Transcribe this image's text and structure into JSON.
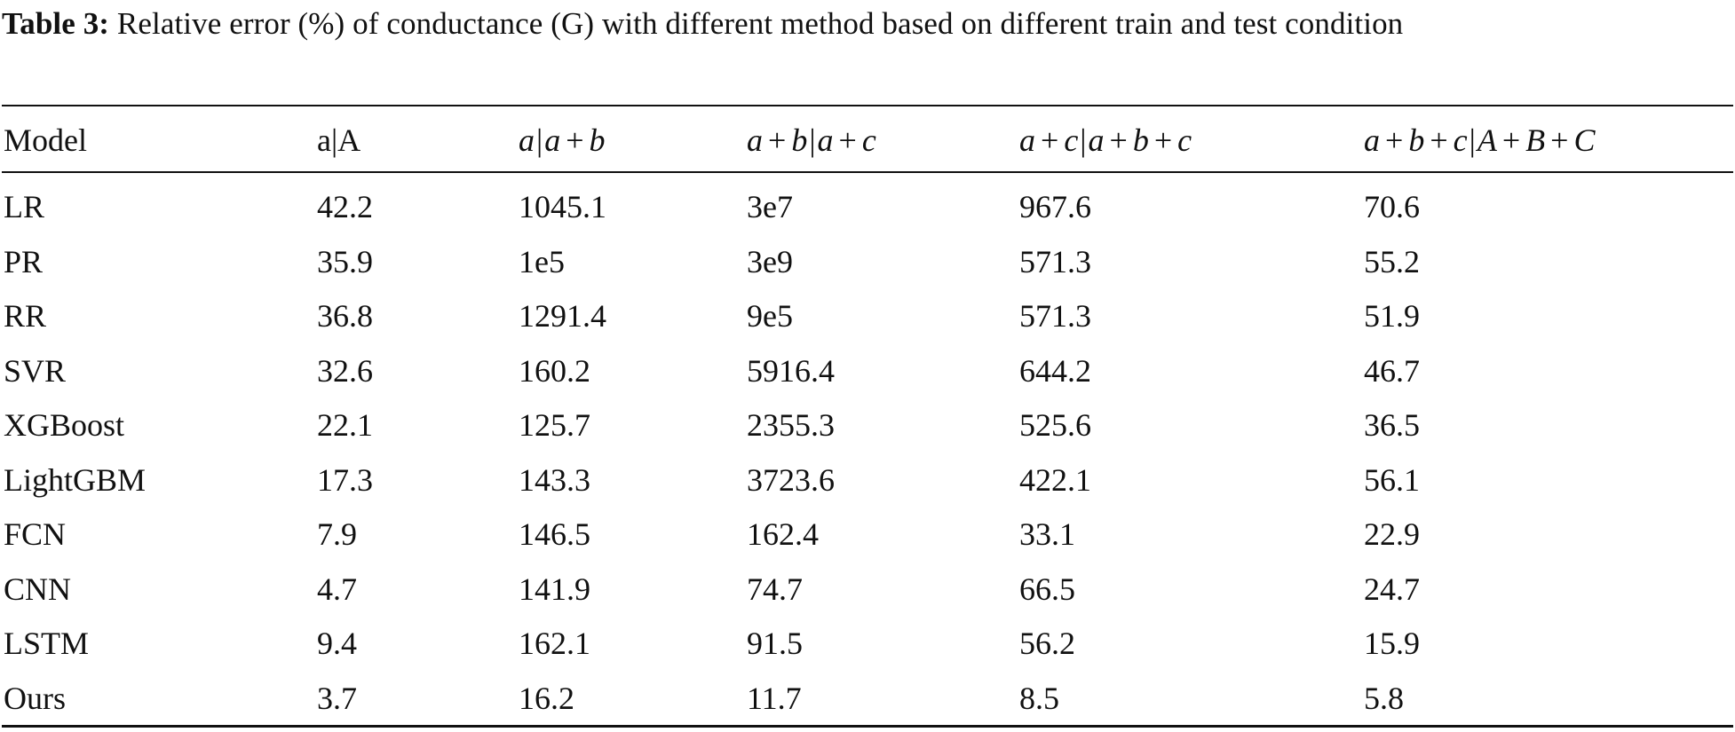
{
  "caption": {
    "label": "Table 3:",
    "text": "Relative error (%) of conductance (G) with different method based on different train and test condition"
  },
  "table": {
    "columns": [
      {
        "id": "model",
        "label": "Model"
      },
      {
        "id": "aA",
        "label": "a|A"
      },
      {
        "id": "a_ab",
        "label": "a|a + b"
      },
      {
        "id": "ab_ac",
        "label": "a + b|a + c"
      },
      {
        "id": "ac_abc",
        "label": "a + c|a + b + c"
      },
      {
        "id": "abc_ABC",
        "label": "a + b + c|A + B + C"
      }
    ],
    "rows": [
      [
        "LR",
        "42.2",
        "1045.1",
        "3e7",
        "967.6",
        "70.6"
      ],
      [
        "PR",
        "35.9",
        "1e5",
        "3e9",
        "571.3",
        "55.2"
      ],
      [
        "RR",
        "36.8",
        "1291.4",
        "9e5",
        "571.3",
        "51.9"
      ],
      [
        "SVR",
        "32.6",
        "160.2",
        "5916.4",
        "644.2",
        "46.7"
      ],
      [
        "XGBoost",
        "22.1",
        "125.7",
        "2355.3",
        "525.6",
        "36.5"
      ],
      [
        "LightGBM",
        "17.3",
        "143.3",
        "3723.6",
        "422.1",
        "56.1"
      ],
      [
        "FCN",
        "7.9",
        "146.5",
        "162.4",
        "33.1",
        "22.9"
      ],
      [
        "CNN",
        "4.7",
        "141.9",
        "74.7",
        "66.5",
        "24.7"
      ],
      [
        "LSTM",
        "9.4",
        "162.1",
        "91.5",
        "56.2",
        "15.9"
      ],
      [
        "Ours",
        "3.7",
        "16.2",
        "11.7",
        "8.5",
        "5.8"
      ]
    ]
  }
}
